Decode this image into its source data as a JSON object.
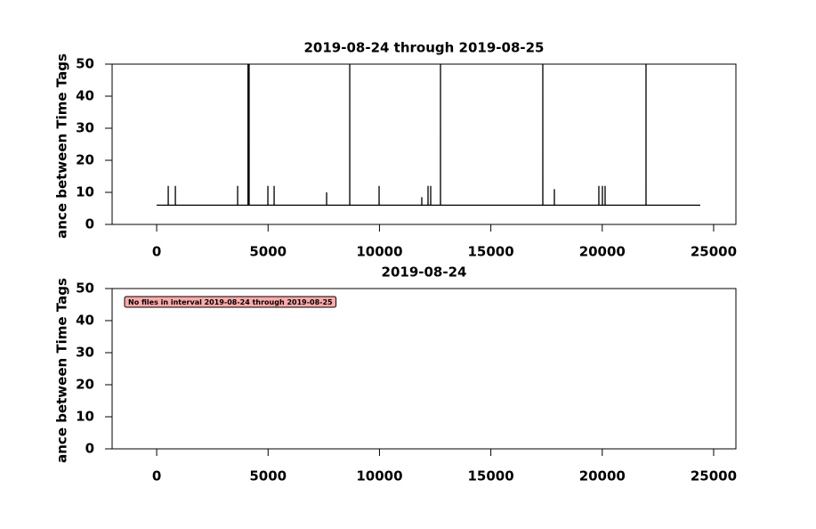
{
  "chart_data": [
    {
      "type": "line",
      "title": "2019-08-24 through 2019-08-25",
      "ylabel": "ance between Time Tags",
      "color": "#000000",
      "x": [
        0,
        518,
        519,
        520,
        838,
        839,
        840,
        3633,
        3634,
        3635,
        4099,
        4100,
        4101,
        4149,
        4150,
        4151,
        4991,
        4992,
        4993,
        5271,
        5272,
        5273,
        7627,
        7628,
        7629,
        8665,
        8666,
        8667,
        9983,
        9984,
        9985,
        11899,
        11900,
        11901,
        12179,
        12180,
        12181,
        12299,
        12300,
        12301,
        12739,
        12740,
        12741,
        17331,
        17332,
        17333,
        17850,
        17851,
        17852,
        19847,
        19848,
        19849,
        20007,
        20008,
        20009,
        20127,
        20128,
        20129,
        21964,
        21965,
        21966,
        24400
      ],
      "values": [
        6,
        6,
        12,
        6,
        6,
        12,
        6,
        6,
        12,
        6,
        6,
        50,
        6,
        6,
        50,
        6,
        6,
        12,
        6,
        6,
        12,
        6,
        6,
        10,
        6,
        6,
        50,
        6,
        6,
        12,
        6,
        6,
        8.5,
        6,
        6,
        12,
        6,
        6,
        12,
        6,
        6,
        50,
        6,
        6,
        50,
        6,
        6,
        11,
        6,
        6,
        12,
        6,
        6,
        12,
        6,
        6,
        12,
        6,
        6,
        50,
        6,
        6
      ],
      "xlim": [
        -2000,
        26000
      ],
      "xticks": [
        0,
        5000,
        10000,
        15000,
        20000,
        25000
      ],
      "ylim": [
        0,
        50
      ],
      "yticks": [
        0,
        10,
        20,
        30,
        40,
        50
      ]
    },
    {
      "type": "line",
      "title": "2019-08-24",
      "ylabel": "ance between Time Tags",
      "annotation": "No files in interval 2019-08-24 through 2019-08-25",
      "xlim": [
        -2000,
        26000
      ],
      "xticks": [
        0,
        5000,
        10000,
        15000,
        20000,
        25000
      ],
      "ylim": [
        0,
        50
      ],
      "yticks": [
        0,
        10,
        20,
        30,
        40,
        50
      ]
    }
  ]
}
